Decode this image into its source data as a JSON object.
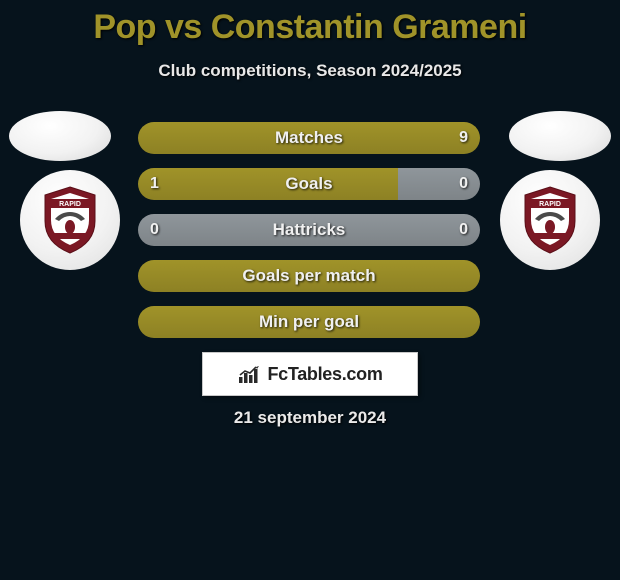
{
  "title": "Pop vs Constantin Grameni",
  "subtitle": "Club competitions, Season 2024/2025",
  "date": "21 september 2024",
  "logo_text": "FcTables.com",
  "colors": {
    "accent": "#a09329",
    "accent_dark": "#8d8223",
    "neutral": "#8f969b",
    "neutral_dark": "#7d848a",
    "background": "#06131c"
  },
  "bars": [
    {
      "label": "Matches",
      "left_value": "",
      "right_value": "9",
      "left_pct": 0,
      "right_pct": 100,
      "left_color": "#a09329",
      "right_color": "#a09329"
    },
    {
      "label": "Goals",
      "left_value": "1",
      "right_value": "0",
      "left_pct": 76,
      "right_pct": 24,
      "left_color": "#a09329",
      "right_color": "#8f969b"
    },
    {
      "label": "Hattricks",
      "left_value": "0",
      "right_value": "0",
      "left_pct": 50,
      "right_pct": 50,
      "left_color": "#8f969b",
      "right_color": "#8f969b"
    },
    {
      "label": "Goals per match",
      "left_value": "",
      "right_value": "",
      "left_pct": 100,
      "right_pct": 0,
      "left_color": "#a09329",
      "right_color": "#a09329"
    },
    {
      "label": "Min per goal",
      "left_value": "",
      "right_value": "",
      "left_pct": 100,
      "right_pct": 0,
      "left_color": "#a09329",
      "right_color": "#a09329"
    }
  ],
  "club_badge": {
    "outer_color": "#7b1824",
    "inner_color": "#ffffff",
    "wing_color": "#4a4a4a",
    "banner_text": "RAPID"
  }
}
